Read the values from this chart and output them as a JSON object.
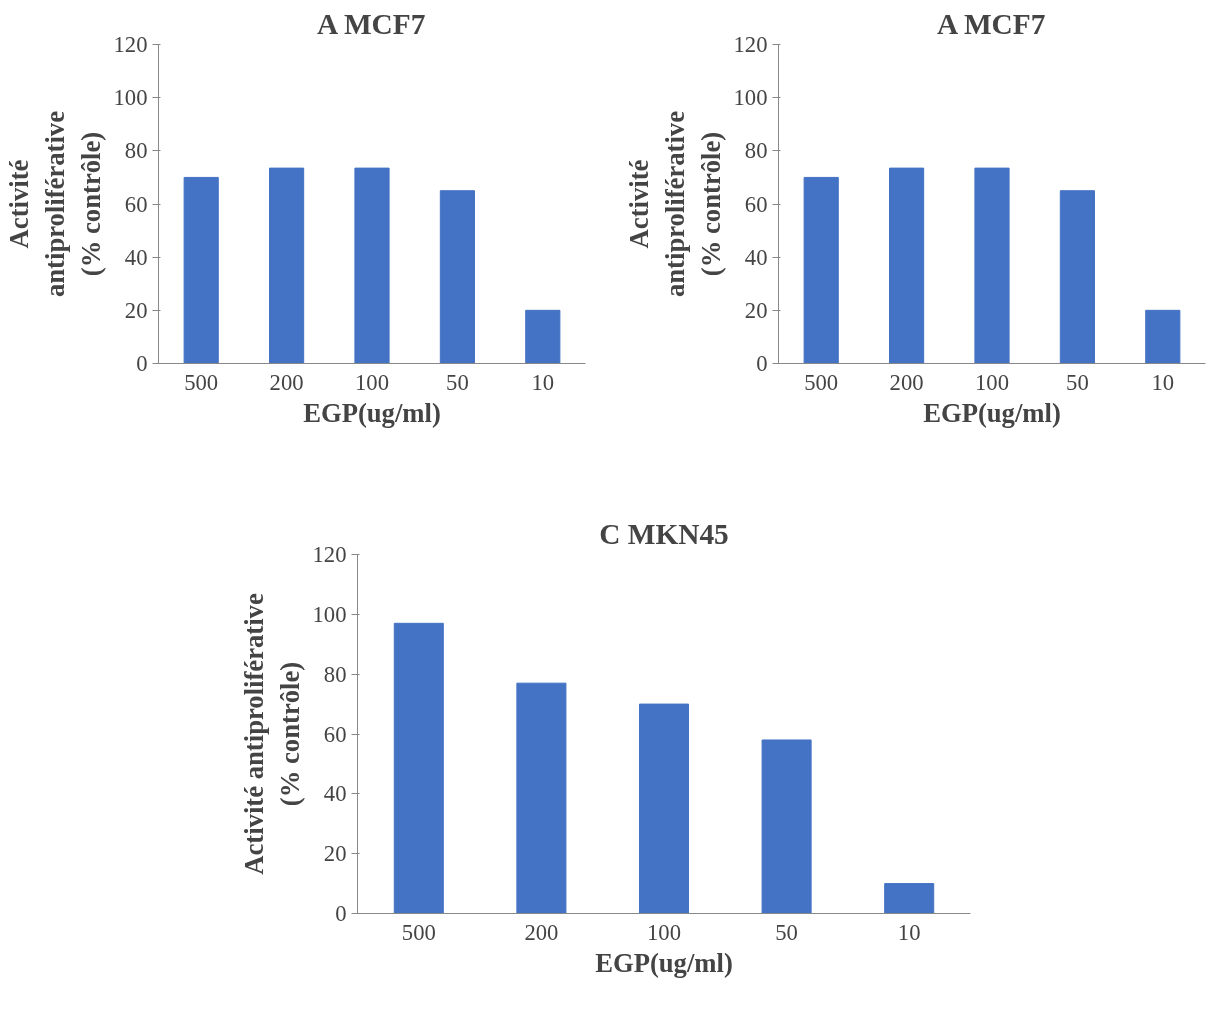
{
  "chart_data": [
    {
      "type": "bar",
      "title": "A MCF7",
      "xlabel": "EGP(ug/ml)",
      "ylabel": "Activité\nantiproliférative\n(% contrôle)",
      "categories": [
        "500",
        "200",
        "100",
        "50",
        "10"
      ],
      "values": [
        70,
        73.5,
        73.5,
        65,
        20
      ],
      "color": "#4472c4",
      "ylim": [
        0,
        120
      ],
      "yticks": [
        0,
        20,
        40,
        60,
        80,
        100,
        120
      ],
      "grid": false
    },
    {
      "type": "bar",
      "title": "A MCF7",
      "xlabel": "EGP(ug/ml)",
      "ylabel": "Activité\nantiproliférative\n(% contrôle)",
      "categories": [
        "500",
        "200",
        "100",
        "50",
        "10"
      ],
      "values": [
        70,
        73.5,
        73.5,
        65,
        20
      ],
      "color": "#4472c4",
      "ylim": [
        0,
        120
      ],
      "yticks": [
        0,
        20,
        40,
        60,
        80,
        100,
        120
      ],
      "grid": false
    },
    {
      "type": "bar",
      "title": "C MKN45",
      "xlabel": "EGP(ug/ml)",
      "ylabel": "Activité antiproliférative\n(% contrôle)",
      "categories": [
        "500",
        "200",
        "100",
        "50",
        "10"
      ],
      "values": [
        97,
        77,
        70,
        58,
        10
      ],
      "color": "#4472c4",
      "ylim": [
        0,
        120
      ],
      "yticks": [
        0,
        20,
        40,
        60,
        80,
        100,
        120
      ],
      "grid": false
    }
  ]
}
